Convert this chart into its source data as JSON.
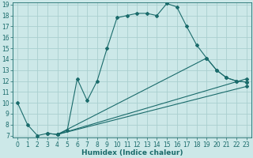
{
  "xlabel": "Humidex (Indice chaleur)",
  "bg_color": "#cce8e8",
  "grid_color": "#aacfcf",
  "line_color": "#1a6b6b",
  "xlim": [
    -0.5,
    23.5
  ],
  "ylim": [
    6.8,
    19.2
  ],
  "xticks": [
    0,
    1,
    2,
    3,
    4,
    5,
    6,
    7,
    8,
    9,
    10,
    11,
    12,
    13,
    14,
    15,
    16,
    17,
    18,
    19,
    20,
    21,
    22,
    23
  ],
  "yticks": [
    7,
    8,
    9,
    10,
    11,
    12,
    13,
    14,
    15,
    16,
    17,
    18,
    19
  ],
  "curve1_x": [
    0,
    1,
    2,
    3,
    4,
    5,
    6,
    7,
    8,
    9,
    10,
    11,
    12,
    13,
    14,
    15,
    16,
    17,
    18,
    19,
    20,
    21,
    22,
    23
  ],
  "curve1_y": [
    10,
    8,
    7,
    7.2,
    7.1,
    7.5,
    12.2,
    10.2,
    12,
    15,
    17.8,
    18,
    18.2,
    18.2,
    18,
    19.1,
    18.8,
    17,
    15.3,
    14.1,
    13,
    12.3,
    12,
    11.9
  ],
  "curve2_x": [
    3,
    4,
    19,
    20,
    21,
    22,
    23
  ],
  "curve2_y": [
    7.2,
    7.1,
    14.1,
    13,
    12.3,
    12,
    11.9
  ],
  "curve3_x": [
    4,
    23
  ],
  "curve3_y": [
    7.1,
    12.2
  ],
  "curve4_x": [
    4,
    23
  ],
  "curve4_y": [
    7.1,
    11.5
  ],
  "xlabel_fontsize": 6.5,
  "tick_fontsize": 5.5
}
